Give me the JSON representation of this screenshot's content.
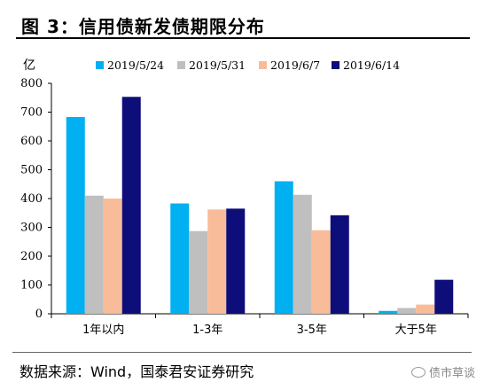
{
  "title": "图 3：信用债新发债期限分布",
  "source": "数据来源：Wind，国泰君安证券研究",
  "watermark": "债市草谈",
  "chart_data": {
    "type": "bar",
    "unit_label": "亿",
    "categories": [
      "1年以内",
      "1-3年",
      "3-5年",
      "大于5年"
    ],
    "series": [
      {
        "name": "2019/5/24",
        "color": "#00b0f0",
        "values": [
          683,
          383,
          460,
          10
        ]
      },
      {
        "name": "2019/5/31",
        "color": "#bfbfbf",
        "values": [
          410,
          287,
          413,
          20
        ]
      },
      {
        "name": "2019/6/7",
        "color": "#f8bc9a",
        "values": [
          400,
          362,
          290,
          32
        ]
      },
      {
        "name": "2019/6/14",
        "color": "#0e0e7a",
        "values": [
          753,
          365,
          342,
          118
        ]
      }
    ],
    "ylim": [
      0,
      800
    ],
    "yticks": [
      0,
      100,
      200,
      300,
      400,
      500,
      600,
      700,
      800
    ],
    "legend_position": "top",
    "grid": false
  }
}
